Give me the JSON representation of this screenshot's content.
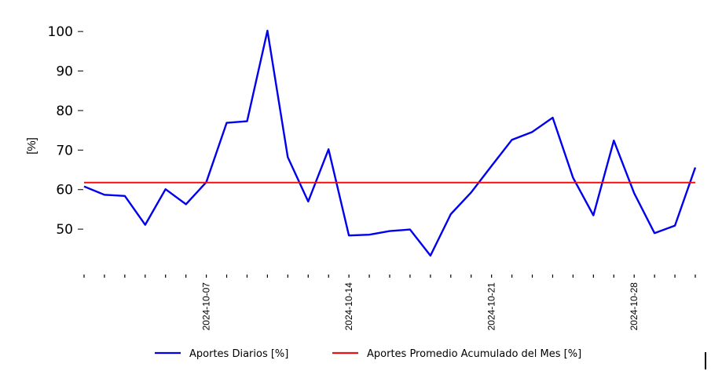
{
  "chart_data": {
    "type": "line",
    "title": "",
    "xlabel": "",
    "ylabel": "[%]",
    "x_start": "2024-10-01",
    "x_end": "2024-10-31",
    "x_tick_labels": [
      "2024-10-07",
      "2024-10-14",
      "2024-10-21",
      "2024-10-28"
    ],
    "y_ticks": [
      50,
      60,
      70,
      80,
      90,
      100
    ],
    "ylim": [
      40.5,
      104
    ],
    "grid": false,
    "legend_position": "bottom-center",
    "series": [
      {
        "name": "Aportes Diarios [%]",
        "color": "#0000ee",
        "x": [
          "2024-10-01",
          "2024-10-02",
          "2024-10-03",
          "2024-10-04",
          "2024-10-05",
          "2024-10-06",
          "2024-10-07",
          "2024-10-08",
          "2024-10-09",
          "2024-10-10",
          "2024-10-11",
          "2024-10-12",
          "2024-10-13",
          "2024-10-14",
          "2024-10-15",
          "2024-10-16",
          "2024-10-17",
          "2024-10-18",
          "2024-10-19",
          "2024-10-20",
          "2024-10-21",
          "2024-10-22",
          "2024-10-23",
          "2024-10-24",
          "2024-10-25",
          "2024-10-26",
          "2024-10-27",
          "2024-10-28",
          "2024-10-29",
          "2024-10-30",
          "2024-10-31"
        ],
        "values": [
          60.8,
          58.7,
          58.4,
          51.1,
          60.1,
          56.3,
          61.9,
          76.9,
          77.3,
          100.2,
          68.2,
          57.0,
          70.2,
          48.4,
          48.6,
          49.5,
          49.9,
          43.3,
          53.8,
          59.3,
          66.0,
          72.6,
          74.6,
          78.2,
          63.0,
          53.5,
          72.4,
          59.1,
          49.0,
          50.9,
          65.6
        ]
      },
      {
        "name": "Aportes Promedio Acumulado del Mes [%]",
        "color": "#ee1111",
        "x": [
          "2024-10-01",
          "2024-10-31"
        ],
        "values": [
          61.8,
          61.8
        ]
      }
    ]
  }
}
